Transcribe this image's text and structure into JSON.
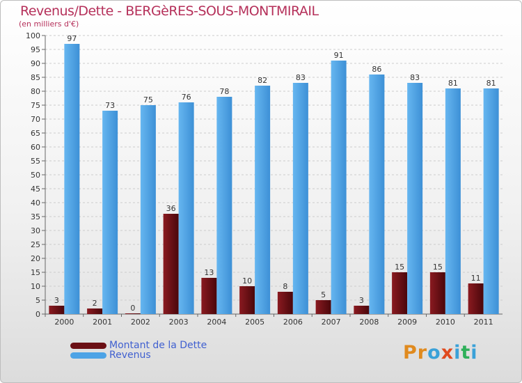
{
  "title": "Revenus/Dette - BERGèRES-SOUS-MONTMIRAIL",
  "subtitle": "(en milliers d'€)",
  "legend": {
    "dette": "Montant de la Dette",
    "revenus": "Revenus"
  },
  "logo": {
    "letters": [
      "P",
      "r",
      "o",
      "x",
      "i",
      "t",
      "i"
    ]
  },
  "colors": {
    "dette": "#6b0f14",
    "revenus": "#4da3e6",
    "title": "#b5305a",
    "legend_text": "#4060d0",
    "grid": "#cccccc",
    "logo": [
      "#e08a1e",
      "#e08a1e",
      "#3aa1d8",
      "#e04a1e",
      "#3aa1d8",
      "#2fb05a",
      "#3aa1d8"
    ]
  },
  "chart_data": {
    "type": "bar",
    "categories": [
      "2000",
      "2001",
      "2002",
      "2003",
      "2004",
      "2005",
      "2006",
      "2007",
      "2008",
      "2009",
      "2010",
      "2011"
    ],
    "series": [
      {
        "name": "Montant de la Dette",
        "values": [
          3,
          2,
          0,
          36,
          13,
          10,
          8,
          5,
          3,
          15,
          15,
          11
        ]
      },
      {
        "name": "Revenus",
        "values": [
          97,
          73,
          75,
          76,
          78,
          82,
          83,
          91,
          86,
          83,
          81,
          81
        ]
      }
    ],
    "ylim": [
      0,
      100
    ],
    "yticks": [
      0,
      5,
      10,
      15,
      20,
      25,
      30,
      35,
      40,
      45,
      50,
      55,
      60,
      65,
      70,
      75,
      80,
      85,
      90,
      95,
      100
    ],
    "grid": true,
    "legend_position": "bottom-left"
  }
}
